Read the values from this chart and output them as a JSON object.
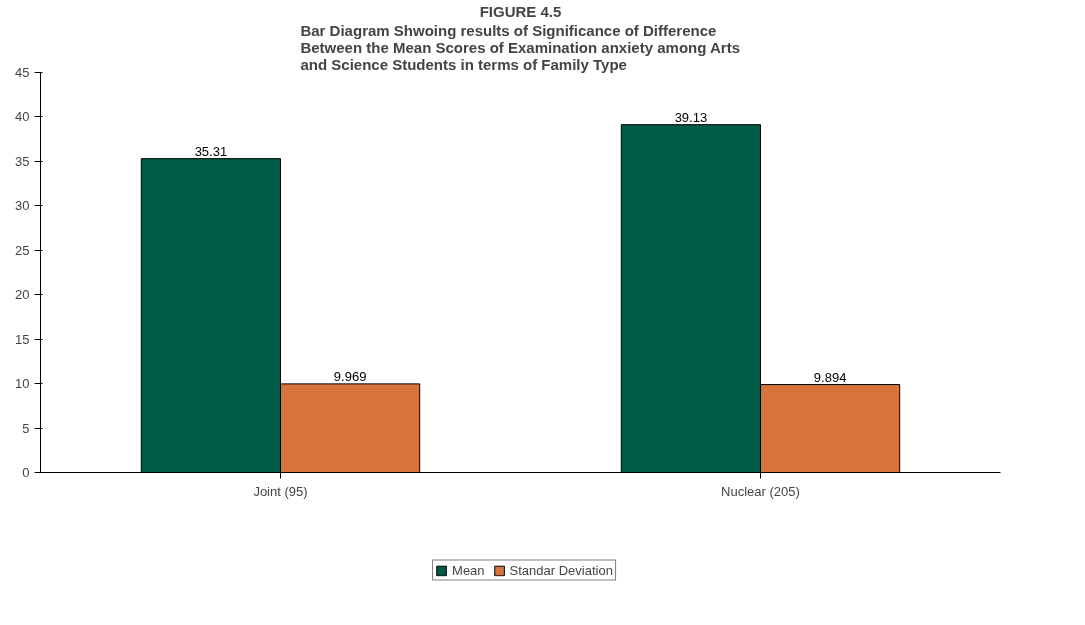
{
  "chart_data": {
    "type": "bar",
    "title": "FIGURE 4.5",
    "subtitle": "Bar Diagram Shwoing results of Significance of Difference\nBetween the Mean Scores of Examination anxiety among Arts\nand Science Students in terms of Family Type",
    "categories": [
      "Joint (95)",
      "Nuclear (205)"
    ],
    "series": [
      {
        "name": "Mean",
        "color": "#005a48",
        "values": [
          35.31,
          39.13
        ]
      },
      {
        "name": "Standar Deviation",
        "color": "#d9733c",
        "values": [
          9.969,
          9.894
        ]
      }
    ],
    "ylim": [
      0,
      45
    ],
    "yticks": [
      0,
      5,
      10,
      15,
      20,
      25,
      30,
      35,
      40,
      45
    ],
    "grid": false,
    "legend": "bottom",
    "data_labels": true
  }
}
